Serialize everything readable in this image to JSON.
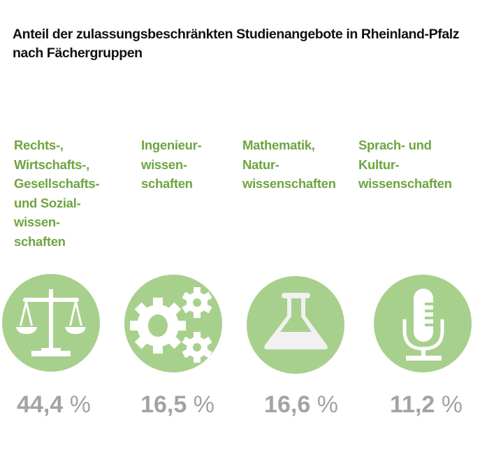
{
  "title": "Anteil der zulassungsbeschränkten Studienangebote in Rheinland-Pfalz nach Fächergruppen",
  "colors": {
    "circle": "#a8d08d",
    "label": "#6ea541",
    "value": "#a3a3a3"
  },
  "chart_data": {
    "type": "table",
    "title": "Anteil der zulassungsbeschränkten Studienangebote in Rheinland-Pfalz nach Fächergruppen",
    "unit": "%",
    "items": [
      {
        "label": "Rechts-,\nWirtschafts-,\nGesellschafts-\nund Sozial-\nwissen-\nschaften",
        "value": 44.4,
        "display": "44,4",
        "icon": "scales-icon"
      },
      {
        "label": "Ingenieur-\nwissen-\nschaften",
        "value": 16.5,
        "display": "16,5",
        "icon": "gears-icon"
      },
      {
        "label": "Mathematik,\nNatur-\nwissenschaften",
        "value": 16.6,
        "display": "16,6",
        "icon": "flask-icon"
      },
      {
        "label": "Sprach- und\nKultur-\nwissenschaften",
        "value": 11.2,
        "display": "11,2",
        "icon": "microphone-icon"
      }
    ]
  }
}
